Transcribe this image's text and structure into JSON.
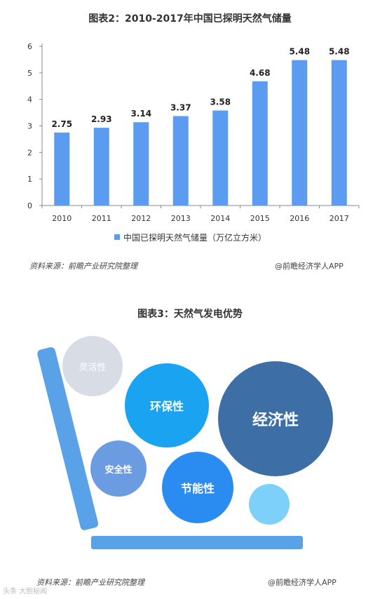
{
  "chart1": {
    "title": "图表2：2010-2017年中国已探明天然气储量",
    "legend_label": "中国已探明天然气储量（万亿立方米）",
    "source": "资料来源：前瞻产业研究院整理",
    "brand": "@前瞻经济学人APP"
  },
  "chart_data": {
    "type": "bar",
    "title": "图表2：2010-2017年中国已探明天然气储量",
    "categories": [
      "2010",
      "2011",
      "2012",
      "2013",
      "2014",
      "2015",
      "2016",
      "2017"
    ],
    "series": [
      {
        "name": "中国已探明天然气储量（万亿立方米）",
        "values": [
          2.75,
          2.93,
          3.14,
          3.37,
          3.58,
          4.68,
          5.48,
          5.48
        ]
      }
    ],
    "value_labels": [
      "2.75",
      "2.93",
      "3.14",
      "3.37",
      "3.58",
      "4.68",
      "5.48",
      "5.48"
    ],
    "yticks": [
      "0",
      "1",
      "2",
      "3",
      "4",
      "5",
      "6"
    ],
    "ylim": [
      0,
      6
    ],
    "grid": false,
    "legend_position": "bottom",
    "bar_color": "#5b9bf0"
  },
  "chart2": {
    "title": "图表3：天然气发电优势",
    "bubbles": {
      "flexibility": {
        "label": "灵活性",
        "color": "#d8dce5"
      },
      "environmental": {
        "label": "环保性",
        "color": "#1aa3f0"
      },
      "economic": {
        "label": "经济性",
        "color": "#3d6fa6"
      },
      "safety": {
        "label": "安全性",
        "color": "#6b9be0"
      },
      "energy_saving": {
        "label": "节能性",
        "color": "#2a8cf0"
      },
      "small": {
        "color": "#7dd0fa"
      }
    },
    "source": "资料来源：前瞻产业研究院整理",
    "brand": "@前瞻经济学人APP"
  },
  "footer_watermark": "头条 大胆秘闻"
}
